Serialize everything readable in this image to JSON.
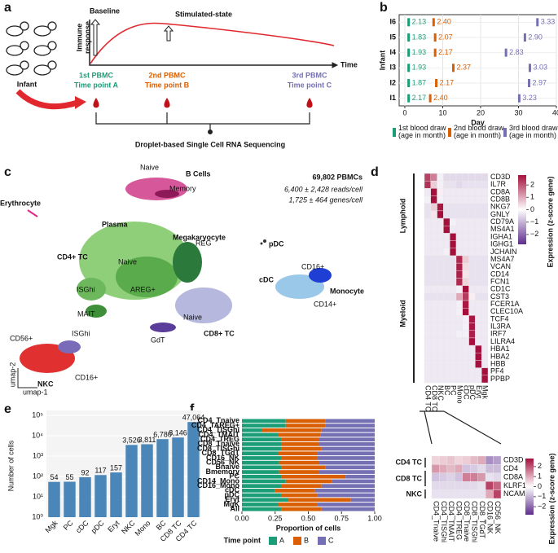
{
  "panel_labels": [
    "a",
    "b",
    "c",
    "d",
    "e",
    "f"
  ],
  "panel_a": {
    "baseline": "Baseline",
    "stimulated": "Stimulated-state",
    "y_label": [
      "Immune",
      "response"
    ],
    "x_label": "Time",
    "subject": "Infant",
    "time_points": [
      [
        "1st PBMC",
        "Time point A"
      ],
      [
        "2nd PBMC",
        "Time point B"
      ],
      [
        "3rd PBMC",
        "Time point C"
      ]
    ],
    "method": "Droplet-based Single Cell RNA Sequencing"
  },
  "panel_c": {
    "summary": "69,802 PBMCs",
    "reads": "6,400 ± 2,428 reads/cell",
    "genes": "1,725 ± 464 genes/cell",
    "labels": [
      "B Cells",
      "Naive",
      "Memory",
      "Erythrocyte",
      "Plasma",
      "Megakaryocyte",
      "pDC",
      "CD4+ TC",
      "Naive",
      "AREG+",
      "REG",
      "ISGhi",
      "MAIT",
      "cDC",
      "CD16+",
      "Monocyte",
      "CD14+",
      "GdT",
      "Naive",
      "CD8+ TC",
      "CD56+",
      "ISGhi",
      "NKC",
      "CD16+"
    ],
    "axes": [
      "umap-2",
      "umap-1"
    ]
  },
  "chart_data": [
    {
      "type": "scatter",
      "categories": [
        "I1",
        "I2",
        "I3",
        "I4",
        "I5",
        "I6"
      ],
      "xlabel": "Day",
      "ylabel": "Infant",
      "xlim": [
        -1.5,
        40
      ],
      "xticks": [
        0,
        10,
        20,
        30,
        40
      ],
      "grid": true,
      "series": [
        {
          "name": "1st blood draw (age in month)",
          "color": "#1b9e77",
          "x": [
            1,
            1,
            1,
            1,
            1,
            1
          ],
          "values": [
            2.17,
            1.87,
            1.93,
            1.93,
            1.83,
            2.13
          ],
          "value_labels": [
            "2.17",
            "1.87",
            "1.93",
            "1.93",
            "1.83",
            "2.13"
          ]
        },
        {
          "name": "2nd blood draw (age in month)",
          "color": "#d95f02",
          "x": [
            6.7,
            8.3,
            12.8,
            8,
            8,
            7.6
          ],
          "values": [
            2.4,
            2.17,
            2.37,
            2.17,
            2.07,
            2.4
          ],
          "value_labels": [
            "2.40",
            "2.17",
            "2.37",
            "2.17",
            "2.07",
            "2.40"
          ]
        },
        {
          "name": "3rd blood draw (age in month)",
          "color": "#7570b3",
          "x": [
            30.2,
            32.8,
            33,
            26.7,
            31.7,
            35
          ],
          "values": [
            3.23,
            2.97,
            3.03,
            2.83,
            2.9,
            3.33
          ],
          "value_labels": [
            "3.23",
            "2.97",
            "3.03",
            "2.83",
            "2.90",
            "3.33"
          ]
        }
      ]
    },
    {
      "type": "heatmap",
      "columns": [
        "CD4 TC",
        "CD8 TC",
        "NKC",
        "BC",
        "PC",
        "Mono",
        "cDC",
        "pDC",
        "Eryt",
        "Mgk"
      ],
      "rows": [
        "CD3D",
        "IL7R",
        "CD8A",
        "CD8B",
        "NKG7",
        "GNLY",
        "CD79A",
        "MS4A1",
        "IGHA1",
        "IGHG1",
        "JCHAIN",
        "MS4A7",
        "VCAN",
        "CD14",
        "FCN1",
        "CD1C",
        "CST3",
        "FCER1A",
        "CLEC10A",
        "TCF4",
        "IL3RA",
        "IRF7",
        "LILRA4",
        "HBA1",
        "HBA2",
        "HBB",
        "PF4",
        "PPBP"
      ],
      "row_groups": [
        "Lymphoid",
        "Myeloid"
      ],
      "colorbar_title": "Expression (z-score gene)",
      "colors": [
        "#5e2d8c",
        "#ffffff",
        "#a50f3c"
      ],
      "zlim": [
        -2.8,
        2.8
      ],
      "zticks": [
        {
          "value": -2,
          "label": "−2"
        },
        {
          "value": -1,
          "label": "−1"
        },
        0,
        1,
        2
      ],
      "values": [
        [
          2.2,
          1.5,
          -0.2,
          -0.5,
          -0.5,
          -0.5,
          -0.5,
          -0.5,
          -0.5,
          -0.5
        ],
        [
          2.4,
          0.6,
          -0.2,
          -0.4,
          -0.4,
          -0.5,
          -0.4,
          -0.4,
          -0.4,
          -0.4
        ],
        [
          -0.3,
          2.8,
          0.2,
          -0.3,
          -0.3,
          -0.3,
          -0.3,
          -0.3,
          -0.3,
          -0.3
        ],
        [
          -0.2,
          2.8,
          -0.2,
          -0.3,
          -0.3,
          -0.3,
          -0.3,
          -0.3,
          -0.3,
          -0.3
        ],
        [
          -0.4,
          0.6,
          2.7,
          -0.4,
          -0.4,
          -0.4,
          -0.4,
          -0.4,
          -0.4,
          -0.4
        ],
        [
          -0.4,
          0.3,
          2.8,
          -0.4,
          -0.4,
          -0.4,
          -0.4,
          -0.4,
          -0.4,
          -0.4
        ],
        [
          -0.3,
          -0.3,
          -0.3,
          2.8,
          -0.2,
          -0.3,
          -0.3,
          -0.3,
          -0.3,
          -0.3
        ],
        [
          -0.3,
          -0.3,
          -0.3,
          2.8,
          -0.3,
          -0.3,
          -0.3,
          -0.3,
          -0.3,
          -0.3
        ],
        [
          -0.3,
          -0.3,
          -0.3,
          -0.3,
          2.9,
          -0.3,
          -0.3,
          -0.3,
          -0.3,
          -0.3
        ],
        [
          -0.3,
          -0.3,
          -0.3,
          -0.3,
          2.9,
          -0.3,
          -0.3,
          -0.3,
          -0.3,
          -0.3
        ],
        [
          -0.3,
          -0.3,
          -0.3,
          -0.2,
          2.9,
          -0.3,
          -0.3,
          -0.3,
          -0.3,
          -0.3
        ],
        [
          -0.4,
          -0.4,
          -0.4,
          -0.4,
          -0.4,
          2.5,
          0.6,
          -0.4,
          -0.4,
          -0.4
        ],
        [
          -0.4,
          -0.4,
          -0.4,
          -0.4,
          -0.4,
          2.6,
          0.4,
          -0.4,
          -0.4,
          -0.4
        ],
        [
          -0.4,
          -0.4,
          -0.4,
          -0.4,
          -0.4,
          2.6,
          0.3,
          -0.4,
          -0.4,
          -0.4
        ],
        [
          -0.4,
          -0.4,
          -0.4,
          -0.4,
          -0.4,
          2.5,
          0.5,
          -0.4,
          -0.4,
          -0.4
        ],
        [
          -0.3,
          -0.3,
          -0.3,
          -0.3,
          -0.3,
          -0.2,
          2.8,
          -0.3,
          -0.3,
          -0.3
        ],
        [
          -0.4,
          -0.4,
          -0.4,
          -0.4,
          -0.4,
          1.0,
          2.3,
          0.2,
          -0.4,
          -0.4
        ],
        [
          -0.3,
          -0.3,
          -0.3,
          -0.3,
          -0.3,
          -0.2,
          2.7,
          -0.3,
          -0.3,
          -0.3
        ],
        [
          -0.3,
          -0.3,
          -0.3,
          -0.3,
          -0.3,
          -0.2,
          2.8,
          -0.3,
          -0.3,
          -0.3
        ],
        [
          -0.3,
          -0.3,
          -0.3,
          -0.3,
          -0.3,
          -0.3,
          -0.2,
          2.7,
          -0.3,
          -0.3
        ],
        [
          -0.3,
          -0.3,
          -0.3,
          -0.3,
          -0.3,
          -0.3,
          -0.2,
          2.7,
          -0.3,
          -0.3
        ],
        [
          -0.3,
          -0.3,
          -0.3,
          -0.3,
          -0.3,
          -0.2,
          -0.2,
          2.6,
          -0.3,
          -0.3
        ],
        [
          -0.3,
          -0.3,
          -0.3,
          -0.3,
          -0.3,
          -0.3,
          -0.3,
          2.8,
          -0.3,
          -0.3
        ],
        [
          -0.3,
          -0.3,
          -0.3,
          -0.3,
          -0.3,
          -0.3,
          -0.3,
          -0.3,
          2.9,
          -0.3
        ],
        [
          -0.3,
          -0.3,
          -0.3,
          -0.3,
          -0.3,
          -0.3,
          -0.3,
          -0.3,
          2.9,
          -0.3
        ],
        [
          -0.3,
          -0.3,
          -0.3,
          -0.3,
          -0.3,
          -0.3,
          -0.3,
          -0.3,
          2.9,
          -0.3
        ],
        [
          -0.3,
          -0.3,
          -0.3,
          -0.3,
          -0.3,
          -0.3,
          -0.3,
          -0.3,
          -0.3,
          2.9
        ],
        [
          -0.3,
          -0.3,
          -0.3,
          -0.3,
          -0.3,
          -0.3,
          -0.3,
          -0.3,
          -0.3,
          2.9
        ]
      ]
    },
    {
      "type": "heatmap",
      "columns": [
        "CD4_Tnaive",
        "CD4_TISGhi",
        "CD4_TMAIT",
        "CD4_TREG",
        "CD8_Tnaive",
        "CD8_TISGhi",
        "CD8_TGdT",
        "CD16_NK",
        "CD56_NK"
      ],
      "rows": [
        "CD3D",
        "CD4",
        "CD8A",
        "KLRF1",
        "NCAM1"
      ],
      "row_groups": [
        "CD4 TC",
        "CD8 TC",
        "NKC"
      ],
      "colorbar_title": "Expression (z-score gene)",
      "colors": [
        "#5e2d8c",
        "#ffffff",
        "#a50f3c"
      ],
      "zlim": [
        -2.8,
        2.8
      ],
      "zticks": [
        {
          "value": -2,
          "label": "−2"
        },
        {
          "value": -1,
          "label": "−1"
        },
        0,
        1,
        2
      ],
      "values": [
        [
          0.5,
          0.6,
          0.7,
          0.5,
          0.6,
          0.8,
          1.0,
          -1.5,
          -1.3
        ],
        [
          1.2,
          1.0,
          0.8,
          1.0,
          -0.8,
          -0.7,
          -0.5,
          -0.9,
          -0.9
        ],
        [
          -0.8,
          -0.7,
          -0.6,
          -0.8,
          1.5,
          1.5,
          1.2,
          -0.4,
          -0.5
        ],
        [
          -0.5,
          -0.5,
          -0.5,
          -0.5,
          -0.5,
          -0.5,
          -0.4,
          2.2,
          1.8
        ],
        [
          -0.4,
          -0.4,
          -0.4,
          -0.4,
          -0.4,
          -0.4,
          -0.4,
          1.0,
          2.2
        ]
      ]
    },
    {
      "type": "bar",
      "categories": [
        "Mgk",
        "PC",
        "cDC",
        "pDC",
        "Eryt",
        "NKC",
        "Mono",
        "BC",
        "CD8 TC",
        "CD4 TC"
      ],
      "values": [
        54,
        55,
        92,
        117,
        157,
        3526,
        3811,
        6780,
        8146,
        47064
      ],
      "value_labels": [
        "54",
        "55",
        "92",
        "117",
        "157",
        "3,526",
        "3,811",
        "6,780",
        "8,146",
        "47,064"
      ],
      "color": "#4a86b8",
      "ylabel": "Number of cells",
      "log_scale": true,
      "ylim": [
        1,
        100000
      ],
      "yticks": [
        {
          "value": 1,
          "label": "10⁰"
        },
        {
          "value": 10,
          "label": "10¹"
        },
        {
          "value": 100,
          "label": "10²"
        },
        {
          "value": 1000,
          "label": "10³"
        },
        {
          "value": 10000,
          "label": "10⁴"
        },
        {
          "value": 100000,
          "label": "10⁵"
        }
      ]
    },
    {
      "type": "stacked_barh",
      "categories": [
        "CD4_Tnaive",
        "CD4_TAREG+",
        "CD4_TISGhi",
        "CD4_TMAIT",
        "CD4_TREG",
        "CD8_Tnaive",
        "CD8_TISGhi",
        "CD8_TGdT",
        "CD16_NK",
        "CD56_NK",
        "Bnaive",
        "Bmemory",
        "PC",
        "CD14_Mono",
        "CD16_Mono",
        "cDC",
        "pDC",
        "Eryt",
        "MgK",
        "All"
      ],
      "xlabel": "Proportion of cells",
      "legend_title": "Time point",
      "xlim": [
        0,
        1
      ],
      "xticks": [
        {
          "value": 0,
          "label": "0.00"
        },
        {
          "value": 0.25,
          "label": "0.25"
        },
        {
          "value": 0.5,
          "label": "0.50"
        },
        {
          "value": 0.75,
          "label": "0.75"
        },
        {
          "value": 1,
          "label": "1.00"
        }
      ],
      "series": [
        {
          "name": "A",
          "color": "#1b9e77",
          "values": [
            0.33,
            0.33,
            0.15,
            0.27,
            0.3,
            0.3,
            0.3,
            0.27,
            0.3,
            0.28,
            0.3,
            0.28,
            0.3,
            0.33,
            0.3,
            0.25,
            0.3,
            0.35,
            0.27,
            0.3
          ]
        },
        {
          "name": "B",
          "color": "#d95f02",
          "values": [
            0.3,
            0.3,
            0.45,
            0.32,
            0.28,
            0.28,
            0.3,
            0.3,
            0.27,
            0.3,
            0.33,
            0.3,
            0.48,
            0.35,
            0.3,
            0.3,
            0.27,
            0.47,
            0.3,
            0.3
          ]
        },
        {
          "name": "C",
          "color": "#7570b3",
          "values": [
            0.37,
            0.37,
            0.4,
            0.41,
            0.42,
            0.42,
            0.4,
            0.43,
            0.43,
            0.42,
            0.37,
            0.42,
            0.22,
            0.32,
            0.4,
            0.45,
            0.43,
            0.18,
            0.43,
            0.4
          ]
        }
      ]
    }
  ]
}
